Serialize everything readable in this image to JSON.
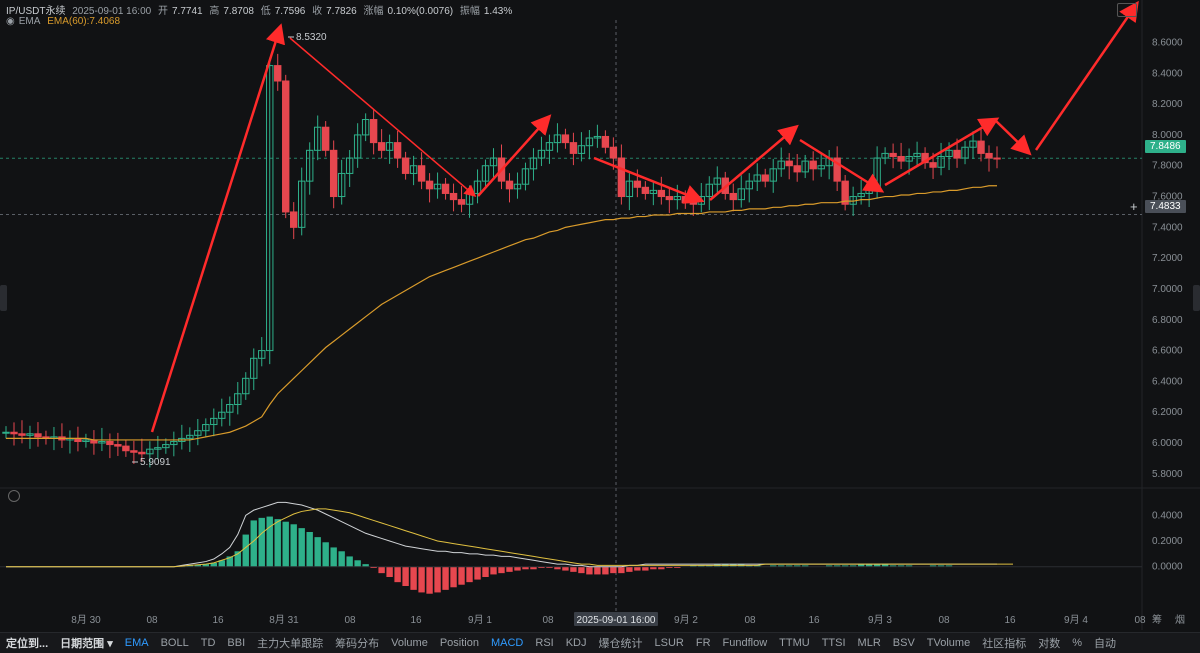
{
  "header": {
    "symbol": "IP/USDT永续",
    "datetime": "2025-09-01 16:00",
    "open_label": "开",
    "open": "7.7741",
    "high_label": "高",
    "high": "7.8708",
    "low_label": "低",
    "low": "7.7596",
    "close_label": "收",
    "close": "7.7826",
    "change_label": "涨幅",
    "change": "0.10%(0.0076)",
    "amp_label": "振幅",
    "amp": "1.43%",
    "indicator": "EMA",
    "ema_label": "EMA(60):7.4068"
  },
  "price_tags": {
    "current": "7.8486",
    "cross": "7.4833"
  },
  "colors": {
    "up": "#2eb08a",
    "down": "#e6474f",
    "ema": "#d99b2b",
    "arrow": "#ff2b2b",
    "bg": "#111214",
    "current_tag": "#2eb08a",
    "cross_tag": "#4a4f58"
  },
  "chart_data": {
    "type": "line",
    "main": {
      "indicator": "EMA(60)",
      "y_ticks": [
        "8.6000",
        "8.4000",
        "8.2000",
        "8.0000",
        "7.8000",
        "7.6000",
        "7.4000",
        "7.2000",
        "7.0000",
        "6.8000",
        "6.6000",
        "6.4000",
        "6.2000",
        "6.0000",
        "5.8000"
      ],
      "ylim": [
        5.76,
        8.72
      ],
      "x_ticks": [
        "8月 30",
        "08",
        "16",
        "8月 31",
        "08",
        "16",
        "9月 1",
        "08",
        "2025-09-01 16:00",
        "9月 2",
        "08",
        "16",
        "9月 3",
        "08",
        "16",
        "9月 4",
        "08",
        "筹",
        "烟"
      ],
      "annotations": [
        {
          "label": "8.5320"
        },
        {
          "label": "5.9091"
        }
      ],
      "close": [
        6.07,
        6.06,
        6.05,
        6.06,
        6.04,
        6.03,
        6.04,
        6.02,
        6.03,
        6.01,
        6.02,
        6.0,
        6.01,
        5.99,
        5.98,
        5.95,
        5.94,
        5.93,
        5.96,
        5.97,
        5.99,
        6.01,
        6.03,
        6.05,
        6.08,
        6.12,
        6.16,
        6.2,
        6.25,
        6.32,
        6.42,
        6.55,
        6.6,
        8.45,
        8.35,
        7.5,
        7.4,
        7.7,
        7.9,
        8.05,
        7.9,
        7.6,
        7.75,
        7.85,
        8.0,
        8.1,
        7.95,
        7.9,
        7.95,
        7.85,
        7.75,
        7.8,
        7.7,
        7.65,
        7.68,
        7.62,
        7.58,
        7.55,
        7.62,
        7.7,
        7.8,
        7.85,
        7.7,
        7.65,
        7.68,
        7.78,
        7.85,
        7.9,
        7.95,
        8.0,
        7.95,
        7.88,
        7.93,
        7.98,
        7.99,
        7.92,
        7.85,
        7.6,
        7.7,
        7.66,
        7.62,
        7.64,
        7.6,
        7.58,
        7.6,
        7.56,
        7.55,
        7.6,
        7.68,
        7.72,
        7.62,
        7.58,
        7.65,
        7.7,
        7.74,
        7.7,
        7.78,
        7.83,
        7.8,
        7.76,
        7.83,
        7.78,
        7.8,
        7.85,
        7.7,
        7.55,
        7.6,
        7.62,
        7.65,
        7.85,
        7.88,
        7.86,
        7.83,
        7.86,
        7.88,
        7.82,
        7.79,
        7.86,
        7.9,
        7.85,
        7.92,
        7.96,
        7.88,
        7.85,
        7.848
      ],
      "ema": [
        6.03,
        6.03,
        6.03,
        6.03,
        6.03,
        6.03,
        6.03,
        6.03,
        6.03,
        6.03,
        6.03,
        6.02,
        6.02,
        6.02,
        6.02,
        6.02,
        6.02,
        6.02,
        6.02,
        6.02,
        6.02,
        6.02,
        6.02,
        6.02,
        6.03,
        6.04,
        6.05,
        6.06,
        6.07,
        6.09,
        6.11,
        6.14,
        6.17,
        6.25,
        6.32,
        6.37,
        6.42,
        6.47,
        6.52,
        6.57,
        6.62,
        6.66,
        6.7,
        6.74,
        6.78,
        6.82,
        6.86,
        6.9,
        6.93,
        6.96,
        6.99,
        7.02,
        7.05,
        7.08,
        7.1,
        7.12,
        7.14,
        7.16,
        7.18,
        7.2,
        7.22,
        7.24,
        7.26,
        7.28,
        7.3,
        7.32,
        7.33,
        7.35,
        7.37,
        7.38,
        7.4,
        7.41,
        7.42,
        7.43,
        7.44,
        7.45,
        7.45,
        7.46,
        7.46,
        7.47,
        7.47,
        7.48,
        7.48,
        7.48,
        7.49,
        7.49,
        7.49,
        7.49,
        7.5,
        7.5,
        7.5,
        7.51,
        7.51,
        7.52,
        7.52,
        7.52,
        7.53,
        7.53,
        7.54,
        7.54,
        7.55,
        7.55,
        7.56,
        7.56,
        7.56,
        7.57,
        7.57,
        7.58,
        7.58,
        7.59,
        7.6,
        7.6,
        7.61,
        7.61,
        7.62,
        7.62,
        7.63,
        7.63,
        7.64,
        7.64,
        7.65,
        7.66,
        7.66,
        7.67,
        7.67
      ]
    },
    "sub": {
      "indicator": "MACD",
      "y_ticks": [
        "0.4000",
        "0.2000",
        "0.0000"
      ],
      "ylim": [
        -0.22,
        0.48
      ],
      "histogram": [
        0,
        0,
        0,
        0,
        0,
        0,
        0,
        0,
        0,
        0,
        0,
        0,
        0,
        0,
        0,
        0,
        0,
        0,
        0,
        0,
        0,
        0,
        0.005,
        0.01,
        0.015,
        0.02,
        0.03,
        0.05,
        0.08,
        0.12,
        0.25,
        0.36,
        0.38,
        0.39,
        0.37,
        0.35,
        0.33,
        0.3,
        0.27,
        0.23,
        0.19,
        0.15,
        0.12,
        0.08,
        0.05,
        0.02,
        -0.01,
        -0.05,
        -0.08,
        -0.12,
        -0.15,
        -0.18,
        -0.2,
        -0.21,
        -0.2,
        -0.18,
        -0.16,
        -0.14,
        -0.12,
        -0.1,
        -0.08,
        -0.06,
        -0.05,
        -0.04,
        -0.03,
        -0.02,
        -0.02,
        -0.01,
        -0.01,
        -0.02,
        -0.03,
        -0.04,
        -0.05,
        -0.06,
        -0.06,
        -0.06,
        -0.05,
        -0.05,
        -0.04,
        -0.03,
        -0.03,
        -0.02,
        -0.02,
        -0.01,
        -0.01,
        0,
        0.01,
        0.01,
        0.01,
        0.02,
        0.02,
        0.02,
        0.02,
        0.01,
        0.01,
        0,
        0.01,
        0.01,
        0.01,
        0.01,
        0.01,
        0,
        0,
        0.01,
        0.01,
        0.01,
        0.01,
        0.02,
        0.02,
        0.02,
        0.02,
        0.01,
        0.01,
        0.01,
        0,
        0,
        0.01,
        0.01,
        0.01,
        0,
        0,
        0
      ],
      "dif": [
        0,
        0,
        0,
        0,
        0,
        0,
        0,
        0,
        0,
        0,
        0,
        0,
        0,
        0,
        0,
        0,
        0,
        0,
        0,
        0,
        0,
        0,
        0.01,
        0.02,
        0.03,
        0.04,
        0.06,
        0.1,
        0.15,
        0.25,
        0.4,
        0.44,
        0.46,
        0.48,
        0.5,
        0.5,
        0.49,
        0.48,
        0.46,
        0.44,
        0.41,
        0.38,
        0.35,
        0.32,
        0.29,
        0.26,
        0.24,
        0.22,
        0.2,
        0.18,
        0.16,
        0.15,
        0.14,
        0.13,
        0.12,
        0.12,
        0.11,
        0.11,
        0.1,
        0.1,
        0.09,
        0.09,
        0.08,
        0.08,
        0.07,
        0.06,
        0.05,
        0.04,
        0.03,
        0.02,
        0.02,
        0.01,
        0.01,
        0,
        0,
        0,
        0,
        0,
        0.01,
        0.01,
        0.02,
        0.02,
        0.02,
        0.02,
        0.02,
        0.02,
        0.02,
        0.02,
        0.02,
        0.02,
        0.02,
        0.02,
        0.02,
        0.02,
        0.02,
        0.02,
        0.02,
        0.02,
        0.02,
        0.02,
        0.02,
        0.02,
        0.02,
        0.02,
        0.02,
        0.02,
        0.02,
        0.02,
        0.02,
        0.02,
        0.02,
        0.02,
        0.02,
        0.02,
        0.02,
        0.02,
        0.02,
        0.02,
        0.02,
        0.02,
        0.02,
        0.02,
        0.02,
        0.02,
        0.02
      ],
      "dea": [
        0,
        0,
        0,
        0,
        0,
        0,
        0,
        0,
        0,
        0,
        0,
        0,
        0,
        0,
        0,
        0,
        0,
        0,
        0,
        0,
        0,
        0,
        0.005,
        0.01,
        0.015,
        0.02,
        0.03,
        0.05,
        0.07,
        0.1,
        0.15,
        0.2,
        0.26,
        0.31,
        0.35,
        0.38,
        0.41,
        0.43,
        0.44,
        0.45,
        0.45,
        0.44,
        0.43,
        0.42,
        0.4,
        0.38,
        0.36,
        0.34,
        0.32,
        0.3,
        0.28,
        0.26,
        0.24,
        0.22,
        0.2,
        0.19,
        0.18,
        0.17,
        0.16,
        0.15,
        0.14,
        0.13,
        0.12,
        0.11,
        0.1,
        0.09,
        0.08,
        0.07,
        0.06,
        0.05,
        0.04,
        0.03,
        0.02,
        0.02,
        0.01,
        0.01,
        0.01,
        0.01,
        0.01,
        0.01,
        0.01,
        0.01,
        0.01,
        0.01,
        0.01,
        0.01,
        0.01,
        0.01,
        0.01,
        0.01,
        0.01,
        0.01,
        0.01,
        0.01,
        0.01,
        0.02,
        0.02,
        0.02,
        0.02,
        0.02,
        0.02,
        0.02,
        0.02,
        0.02,
        0.02,
        0.02,
        0.02,
        0.02,
        0.02,
        0.02,
        0.02,
        0.02,
        0.02,
        0.02,
        0.02,
        0.02,
        0.02,
        0.02,
        0.02,
        0.02,
        0.02,
        0.02,
        0.02,
        0.02,
        0.02,
        0.02,
        0.02
      ]
    }
  },
  "toolbar": {
    "items": [
      {
        "label": "定位到...",
        "style": "bold"
      },
      {
        "label": "日期范围 ▾",
        "style": "bold"
      },
      {
        "label": "EMA",
        "style": "act"
      },
      {
        "label": "BOLL"
      },
      {
        "label": "TD"
      },
      {
        "label": "BBI"
      },
      {
        "label": "主力大单跟踪"
      },
      {
        "label": "筹码分布"
      },
      {
        "label": "Volume"
      },
      {
        "label": "Position"
      },
      {
        "label": "MACD",
        "style": "act"
      },
      {
        "label": "RSI"
      },
      {
        "label": "KDJ"
      },
      {
        "label": "爆仓统计"
      },
      {
        "label": "LSUR"
      },
      {
        "label": "FR"
      },
      {
        "label": "Fundflow"
      },
      {
        "label": "TTMU"
      },
      {
        "label": "TTSI"
      },
      {
        "label": "MLR"
      },
      {
        "label": "BSV"
      },
      {
        "label": "TVolume"
      },
      {
        "label": "社区指标"
      },
      {
        "label": "对数"
      },
      {
        "label": "%"
      },
      {
        "label": "自动"
      }
    ]
  }
}
